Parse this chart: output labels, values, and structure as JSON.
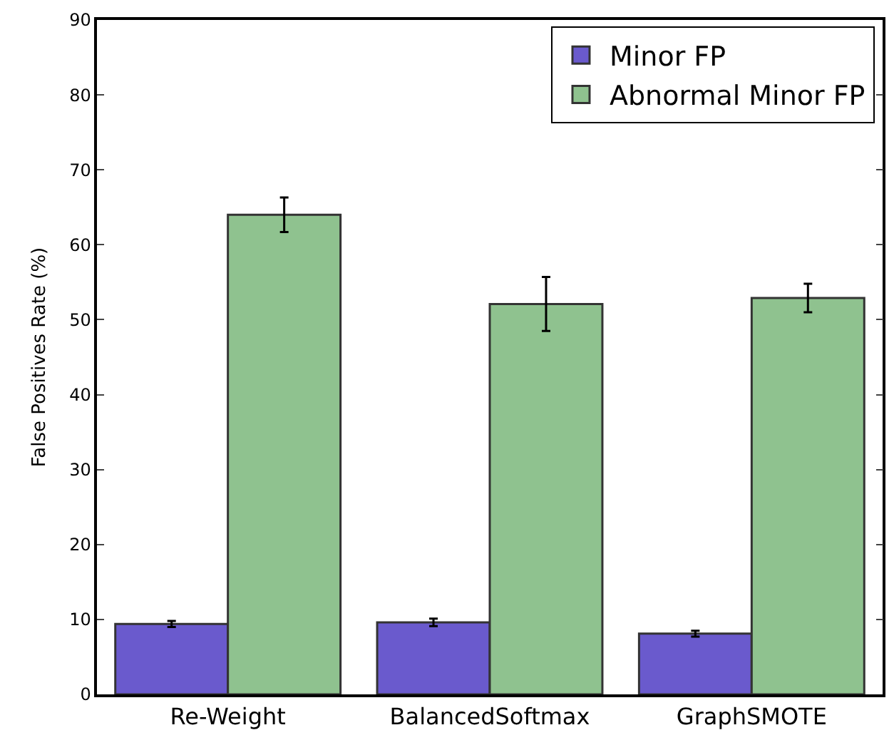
{
  "chart_data": {
    "type": "bar",
    "ylabel": "False Positives Rate (%)",
    "categories": [
      "Re-Weight",
      "BalancedSoftmax",
      "GraphSMOTE"
    ],
    "series": [
      {
        "name": "Minor FP",
        "color": "#6a5acd",
        "values": [
          9.4,
          9.6,
          8.1
        ],
        "errors": [
          0.4,
          0.5,
          0.4
        ]
      },
      {
        "name": "Abnormal Minor FP",
        "color": "#8fc28f",
        "values": [
          64,
          52.1,
          52.9
        ],
        "errors": [
          2.3,
          3.6,
          1.9
        ]
      }
    ],
    "ylim": [
      0,
      90
    ],
    "yticks": [
      0,
      10,
      20,
      30,
      40,
      50,
      60,
      70,
      80,
      90
    ],
    "grid": false,
    "legend": "top right"
  }
}
